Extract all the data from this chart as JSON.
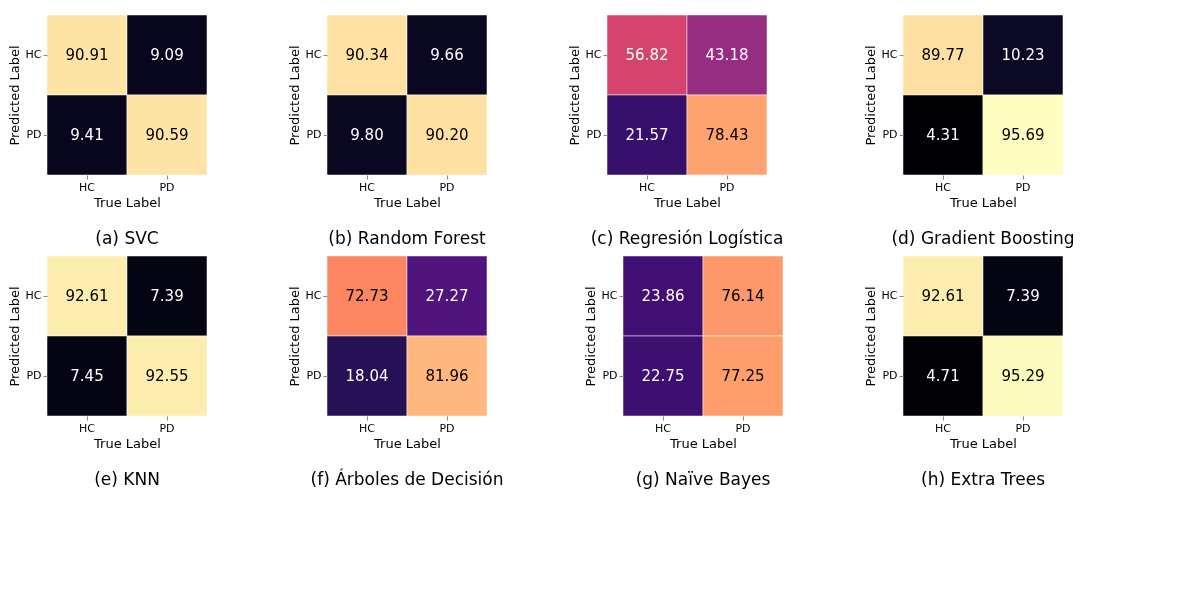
{
  "chart_data": [
    {
      "type": "heatmap",
      "title": "(a) SVC",
      "xlabel": "True Label",
      "ylabel": "Predicted Label",
      "categories": [
        "HC",
        "PD"
      ],
      "y_categories": [
        "HC",
        "PD"
      ],
      "cells": [
        [
          90.91,
          9.09
        ],
        [
          9.41,
          90.59
        ]
      ],
      "data_labels": true,
      "grid": false,
      "legend": false
    },
    {
      "type": "heatmap",
      "title": "(b) Random Forest",
      "xlabel": "True Label",
      "ylabel": "Predicted Label",
      "categories": [
        "HC",
        "PD"
      ],
      "y_categories": [
        "HC",
        "PD"
      ],
      "cells": [
        [
          90.34,
          9.66
        ],
        [
          9.8,
          90.2
        ]
      ],
      "cell_labels": [
        [
          "90.34",
          "9.66"
        ],
        [
          "9.80",
          "90.20"
        ]
      ],
      "data_labels": true,
      "grid": false,
      "legend": false
    },
    {
      "type": "heatmap",
      "title": "(c) Regresión Logística",
      "xlabel": "True Label",
      "ylabel": "Predicted Label",
      "categories": [
        "HC",
        "PD"
      ],
      "y_categories": [
        "HC",
        "PD"
      ],
      "cells": [
        [
          56.82,
          43.18
        ],
        [
          21.57,
          78.43
        ]
      ],
      "data_labels": true,
      "grid": false,
      "legend": false
    },
    {
      "type": "heatmap",
      "title": "(d) Gradient Boosting",
      "xlabel": "True Label",
      "ylabel": "Predicted Label",
      "categories": [
        "HC",
        "PD"
      ],
      "y_categories": [
        "HC",
        "PD"
      ],
      "cells": [
        [
          89.77,
          10.23
        ],
        [
          4.31,
          95.69
        ]
      ],
      "data_labels": true,
      "grid": false,
      "legend": false
    },
    {
      "type": "heatmap",
      "title": "(e) KNN",
      "xlabel": "True Label",
      "ylabel": "Predicted Label",
      "categories": [
        "HC",
        "PD"
      ],
      "y_categories": [
        "HC",
        "PD"
      ],
      "cells": [
        [
          92.61,
          7.39
        ],
        [
          7.45,
          92.55
        ]
      ],
      "data_labels": true,
      "grid": false,
      "legend": false
    },
    {
      "type": "heatmap",
      "title": "(f) Árboles de Decisión",
      "xlabel": "True Label",
      "ylabel": "Predicted Label",
      "categories": [
        "HC",
        "PD"
      ],
      "y_categories": [
        "HC",
        "PD"
      ],
      "cells": [
        [
          72.73,
          27.27
        ],
        [
          18.04,
          81.96
        ]
      ],
      "data_labels": true,
      "grid": false,
      "legend": false
    },
    {
      "type": "heatmap",
      "title": "(g) Naïve Bayes",
      "xlabel": "True Label",
      "ylabel": "Predicted Label",
      "categories": [
        "HC",
        "PD"
      ],
      "y_categories": [
        "HC",
        "PD"
      ],
      "cells": [
        [
          23.86,
          76.14
        ],
        [
          22.75,
          77.25
        ]
      ],
      "data_labels": true,
      "grid": false,
      "legend": false
    },
    {
      "type": "heatmap",
      "title": "(h) Extra Trees",
      "xlabel": "True Label",
      "ylabel": "Predicted Label",
      "categories": [
        "HC",
        "PD"
      ],
      "y_categories": [
        "HC",
        "PD"
      ],
      "cells": [
        [
          92.61,
          7.39
        ],
        [
          4.71,
          95.29
        ]
      ],
      "data_labels": true,
      "grid": false,
      "legend": false
    }
  ]
}
